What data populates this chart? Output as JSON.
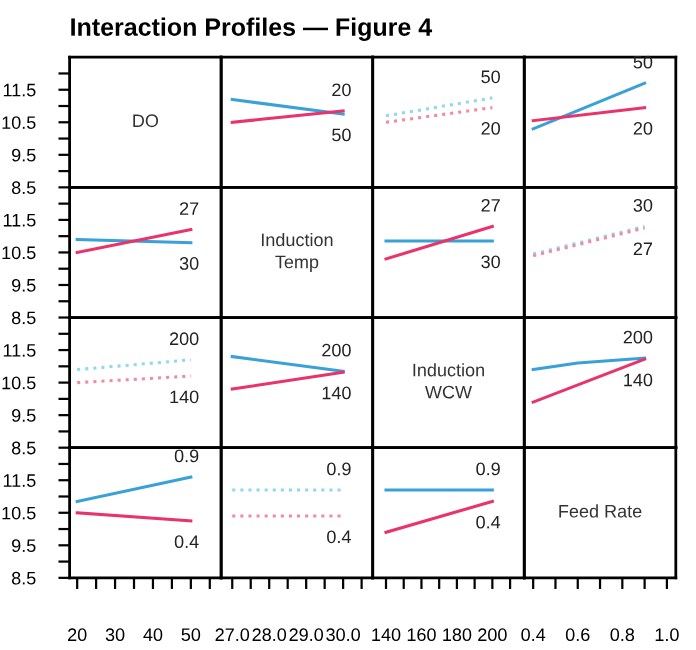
{
  "chart_data": [
    {
      "type": "line",
      "title": "Interaction Profiles — Figure 4",
      "annotations": [
        "DO"
      ],
      "xlim": [
        18,
        58
      ],
      "ylim": [
        8.5,
        12.5
      ],
      "yticks": [
        8.5,
        {
          "value": 9.0,
          "label": null
        },
        9.5,
        {
          "value": 10.0,
          "label": null
        },
        10.5,
        {
          "value": 11.0,
          "label": null
        },
        11.5,
        {
          "value": 12.0,
          "label": null
        }
      ],
      "tick_labels": "y"
    },
    {
      "type": "line",
      "x": [
        27,
        30
      ],
      "xlim": [
        26.7,
        30.8
      ],
      "ylim": [
        8.5,
        12.5
      ],
      "tick_labels": false,
      "series": [
        {
          "name": "50",
          "color": "#3aa0d8",
          "values": [
            11.2,
            10.75
          ]
        },
        {
          "name": "20",
          "color": "#e8336b",
          "values": [
            10.5,
            10.85
          ]
        }
      ]
    },
    {
      "type": "line",
      "x": [
        140,
        200
      ],
      "xlim": [
        132.5,
        218
      ],
      "ylim": [
        8.5,
        12.5
      ],
      "tick_labels": false,
      "series": [
        {
          "name": "50",
          "color": "#8fd8ef",
          "values": [
            10.7,
            11.25
          ],
          "line_style": "dotted"
        },
        {
          "name": "20",
          "color": "#f08aa5",
          "values": [
            10.5,
            10.95
          ],
          "line_style": "dotted"
        }
      ]
    },
    {
      "type": "line",
      "x": [
        0.4,
        0.9
      ],
      "xlim": [
        0.36,
        1.04
      ],
      "ylim": [
        8.5,
        12.5
      ],
      "tick_labels": false,
      "series": [
        {
          "name": "50",
          "color": "#3aa0d8",
          "values": [
            10.3,
            11.7
          ]
        },
        {
          "name": "20",
          "color": "#e8336b",
          "values": [
            10.55,
            10.95
          ]
        }
      ]
    },
    {
      "type": "line",
      "x": [
        20,
        50
      ],
      "xlim": [
        18,
        58
      ],
      "ylim": [
        8.5,
        12.5
      ],
      "yticks": [
        8.5,
        {
          "value": 9.0,
          "label": null
        },
        9.5,
        {
          "value": 10.0,
          "label": null
        },
        10.5,
        {
          "value": 11.0,
          "label": null
        },
        11.5,
        {
          "value": 12.0,
          "label": null
        }
      ],
      "tick_labels": "y",
      "series": [
        {
          "name": "30",
          "color": "#3aa0d8",
          "values": [
            10.9,
            10.8
          ]
        },
        {
          "name": "27",
          "color": "#e8336b",
          "values": [
            10.5,
            11.2
          ]
        }
      ]
    },
    {
      "type": "line",
      "annotations": [
        "Induction\nTemp"
      ],
      "xlim": [
        26.7,
        30.8
      ],
      "ylim": [
        8.5,
        12.5
      ],
      "tick_labels": false
    },
    {
      "type": "line",
      "x": [
        140,
        200
      ],
      "xlim": [
        132.5,
        218
      ],
      "ylim": [
        8.5,
        12.5
      ],
      "tick_labels": false,
      "series": [
        {
          "name": "30",
          "color": "#3aa0d8",
          "values": [
            10.85,
            10.85
          ]
        },
        {
          "name": "27",
          "color": "#e8336b",
          "values": [
            10.3,
            11.3
          ]
        }
      ]
    },
    {
      "type": "line",
      "x": [
        0.4,
        0.9
      ],
      "xlim": [
        0.36,
        1.04
      ],
      "ylim": [
        8.5,
        12.5
      ],
      "tick_labels": false,
      "series": [
        {
          "name": "30",
          "color": "#8fd8ef",
          "values": [
            10.45,
            11.3
          ],
          "line_style": "dotted"
        },
        {
          "name": "27",
          "color": "#f08aa5",
          "values": [
            10.4,
            11.25
          ],
          "line_style": "dotted"
        }
      ]
    },
    {
      "type": "line",
      "x": [
        20,
        50
      ],
      "xlim": [
        18,
        58
      ],
      "ylim": [
        8.5,
        12.5
      ],
      "yticks": [
        8.5,
        {
          "value": 9.0,
          "label": null
        },
        9.5,
        {
          "value": 10.0,
          "label": null
        },
        10.5,
        {
          "value": 11.0,
          "label": null
        },
        11.5,
        {
          "value": 12.0,
          "label": null
        }
      ],
      "tick_labels": "y",
      "series": [
        {
          "name": "200",
          "color": "#8fd8ef",
          "values": [
            10.9,
            11.2
          ],
          "line_style": "dotted"
        },
        {
          "name": "140",
          "color": "#f08aa5",
          "values": [
            10.5,
            10.7
          ],
          "line_style": "dotted"
        }
      ]
    },
    {
      "type": "line",
      "x": [
        27,
        30
      ],
      "xlim": [
        26.7,
        30.8
      ],
      "ylim": [
        8.5,
        12.5
      ],
      "tick_labels": false,
      "series": [
        {
          "name": "200",
          "color": "#3aa0d8",
          "values": [
            11.3,
            10.85
          ]
        },
        {
          "name": "140",
          "color": "#e8336b",
          "values": [
            10.3,
            10.82
          ]
        }
      ]
    },
    {
      "type": "line",
      "annotations": [
        "Induction\nWCW"
      ],
      "xlim": [
        132.5,
        218
      ],
      "ylim": [
        8.5,
        12.5
      ],
      "tick_labels": false
    },
    {
      "type": "line",
      "x": [
        0.4,
        0.9
      ],
      "xlim": [
        0.36,
        1.04
      ],
      "ylim": [
        8.5,
        12.5
      ],
      "tick_labels": false,
      "series": [
        {
          "name": "200",
          "color": "#3aa0d8",
          "x": [
            0.4,
            0.6,
            0.9
          ],
          "values": [
            10.9,
            11.1,
            11.25
          ]
        },
        {
          "name": "140",
          "color": "#e8336b",
          "values": [
            9.9,
            11.22
          ]
        }
      ]
    },
    {
      "type": "line",
      "x": [
        20,
        50
      ],
      "xlim": [
        18,
        58
      ],
      "ylim": [
        8.5,
        12.5
      ],
      "xticks": [
        20,
        {
          "value": 25,
          "label": null
        },
        30,
        {
          "value": 35,
          "label": null
        },
        40,
        {
          "value": 45,
          "label": null
        },
        50,
        {
          "value": 55,
          "label": null
        }
      ],
      "yticks": [
        8.5,
        {
          "value": 9.0,
          "label": null
        },
        9.5,
        {
          "value": 10.0,
          "label": null
        },
        10.5,
        {
          "value": 11.0,
          "label": null
        },
        11.5,
        {
          "value": 12.0,
          "label": null
        }
      ],
      "series": [
        {
          "name": "0.9",
          "color": "#3aa0d8",
          "values": [
            10.85,
            11.6
          ]
        },
        {
          "name": "0.4",
          "color": "#e8336b",
          "values": [
            10.5,
            10.25
          ]
        }
      ]
    },
    {
      "type": "line",
      "x": [
        27,
        30
      ],
      "xlim": [
        26.7,
        30.8
      ],
      "ylim": [
        8.5,
        12.5
      ],
      "xticks": [
        {
          "value": 27,
          "label": "27.0"
        },
        {
          "value": 27.5,
          "label": null
        },
        {
          "value": 28,
          "label": "28.0"
        },
        {
          "value": 28.5,
          "label": null
        },
        {
          "value": 29,
          "label": "29.0"
        },
        {
          "value": 29.5,
          "label": null
        },
        {
          "value": 30,
          "label": "30.0"
        },
        {
          "value": 30.5,
          "label": null
        }
      ],
      "tick_labels": "x",
      "series": [
        {
          "name": "0.9",
          "color": "#8fd8ef",
          "values": [
            11.2,
            11.2
          ],
          "line_style": "dotted"
        },
        {
          "name": "0.4",
          "color": "#f08aa5",
          "values": [
            10.4,
            10.4
          ],
          "line_style": "dotted"
        }
      ]
    },
    {
      "type": "line",
      "x": [
        140,
        200
      ],
      "xlim": [
        132.5,
        218
      ],
      "ylim": [
        8.5,
        12.5
      ],
      "xticks": [
        140,
        {
          "value": 150,
          "label": null
        },
        160,
        {
          "value": 170,
          "label": null
        },
        180,
        {
          "value": 190,
          "label": null
        },
        200,
        {
          "value": 210,
          "label": null
        }
      ],
      "tick_labels": "x",
      "series": [
        {
          "name": "0.9",
          "color": "#3aa0d8",
          "values": [
            11.2,
            11.2
          ]
        },
        {
          "name": "0.4",
          "color": "#e8336b",
          "values": [
            9.9,
            10.85
          ]
        }
      ]
    },
    {
      "type": "line",
      "annotations": [
        "Feed Rate"
      ],
      "ylim": [
        8.5,
        12.5
      ],
      "xlim": [
        0.36,
        1.04
      ],
      "xticks": [
        0.4,
        {
          "value": 0.5,
          "label": null
        },
        0.6,
        {
          "value": 0.7,
          "label": null
        },
        0.8,
        {
          "value": 0.9,
          "label": null
        },
        {
          "value": 1.0,
          "label": "1.0"
        }
      ],
      "tick_labels": "x"
    }
  ]
}
